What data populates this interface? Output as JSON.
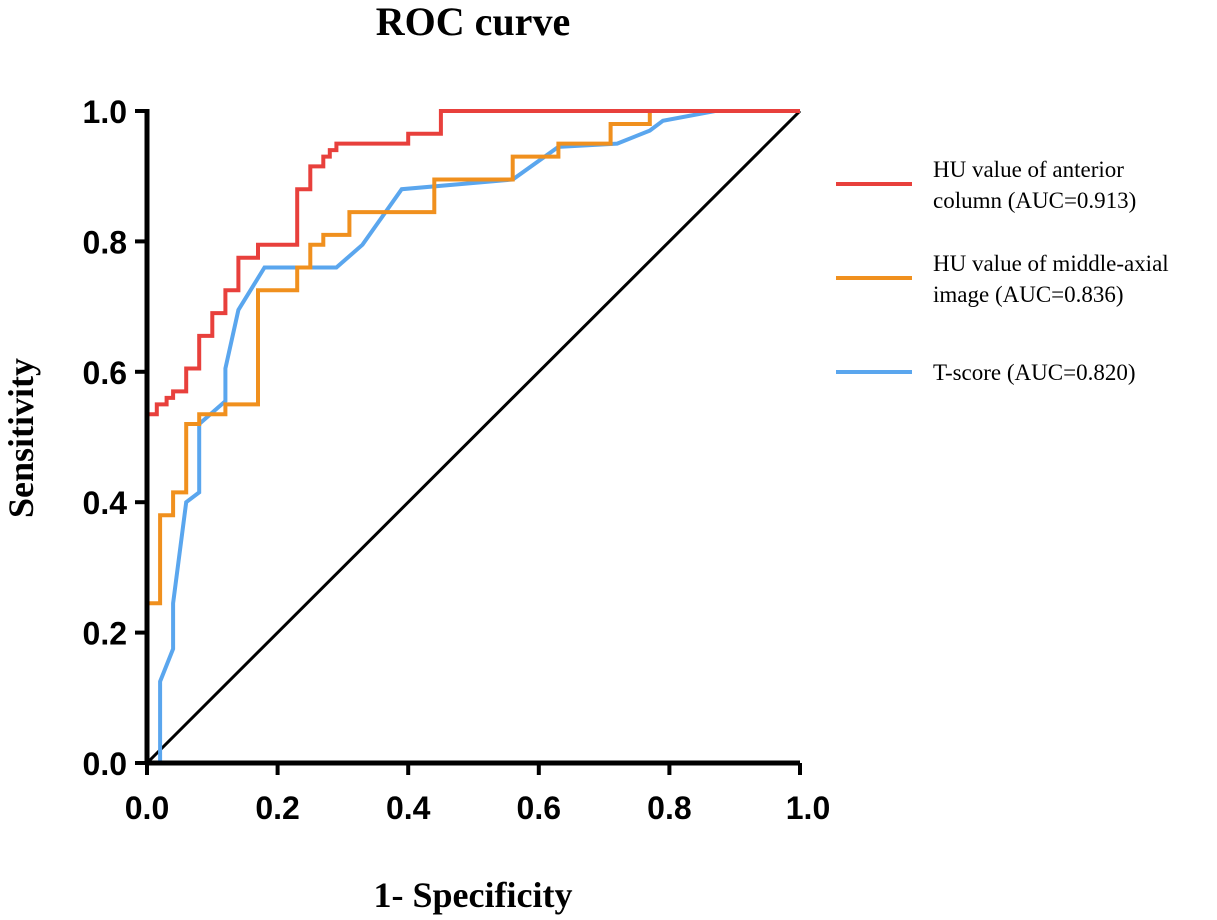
{
  "chart_data": {
    "type": "line",
    "title": "ROC curve",
    "xlabel": "1- Specificity",
    "ylabel": "Sensitivity",
    "xlim": [
      0,
      1
    ],
    "ylim": [
      0,
      1
    ],
    "x_ticks": [
      "0.0",
      "0.2",
      "0.4",
      "0.6",
      "0.8",
      "1.0"
    ],
    "y_ticks": [
      "0.0",
      "0.2",
      "0.4",
      "0.6",
      "0.8",
      "1.0"
    ],
    "grid": false,
    "legend_position": "right",
    "reference_line": {
      "x": [
        0,
        1
      ],
      "y": [
        0,
        1
      ],
      "color": "#000000"
    },
    "series": [
      {
        "name": "HU value of anterior column (AUC=0.913)",
        "legend_lines": [
          "HU value of anterior",
          "column (AUC=0.913)"
        ],
        "color": "#e8403c",
        "x": [
          0,
          0,
          0.015,
          0.015,
          0.03,
          0.03,
          0.04,
          0.04,
          0.06,
          0.06,
          0.08,
          0.08,
          0.1,
          0.1,
          0.12,
          0.12,
          0.14,
          0.14,
          0.17,
          0.17,
          0.23,
          0.23,
          0.25,
          0.25,
          0.27,
          0.27,
          0.28,
          0.28,
          0.29,
          0.29,
          0.4,
          0.4,
          0.45,
          0.45,
          1.0
        ],
        "y": [
          0,
          0.535,
          0.535,
          0.55,
          0.55,
          0.56,
          0.56,
          0.57,
          0.57,
          0.605,
          0.605,
          0.655,
          0.655,
          0.69,
          0.69,
          0.725,
          0.725,
          0.775,
          0.775,
          0.795,
          0.795,
          0.88,
          0.88,
          0.915,
          0.915,
          0.93,
          0.93,
          0.94,
          0.94,
          0.95,
          0.95,
          0.965,
          0.965,
          1.0,
          1.0
        ]
      },
      {
        "name": "HU value of middle-axial image (AUC=0.836)",
        "legend_lines": [
          "HU value of middle-axial",
          "image (AUC=0.836)"
        ],
        "color": "#f0901e",
        "x": [
          0,
          0,
          0.02,
          0.02,
          0.04,
          0.04,
          0.06,
          0.06,
          0.08,
          0.08,
          0.12,
          0.12,
          0.17,
          0.17,
          0.23,
          0.23,
          0.25,
          0.25,
          0.27,
          0.27,
          0.31,
          0.31,
          0.44,
          0.44,
          0.56,
          0.56,
          0.63,
          0.63,
          0.71,
          0.71,
          0.77,
          0.77,
          1.0
        ],
        "y": [
          0,
          0.245,
          0.245,
          0.38,
          0.38,
          0.415,
          0.415,
          0.52,
          0.52,
          0.535,
          0.535,
          0.55,
          0.55,
          0.725,
          0.725,
          0.76,
          0.76,
          0.795,
          0.795,
          0.81,
          0.81,
          0.845,
          0.845,
          0.895,
          0.895,
          0.93,
          0.93,
          0.95,
          0.95,
          0.98,
          0.98,
          1.0,
          1.0
        ]
      },
      {
        "name": "T-score (AUC=0.820)",
        "legend_lines": [
          "T-score (AUC=0.820)"
        ],
        "color": "#5aa6ee",
        "x": [
          0.015,
          0.02,
          0.02,
          0.04,
          0.04,
          0.06,
          0.08,
          0.08,
          0.12,
          0.12,
          0.14,
          0.18,
          0.29,
          0.33,
          0.39,
          0.56,
          0.63,
          0.72,
          0.77,
          0.79,
          0.87,
          1.0
        ],
        "y": [
          0.0,
          0.0,
          0.125,
          0.175,
          0.245,
          0.4,
          0.415,
          0.52,
          0.555,
          0.605,
          0.695,
          0.76,
          0.76,
          0.795,
          0.88,
          0.895,
          0.945,
          0.95,
          0.97,
          0.985,
          1.0,
          1.0
        ]
      }
    ]
  }
}
